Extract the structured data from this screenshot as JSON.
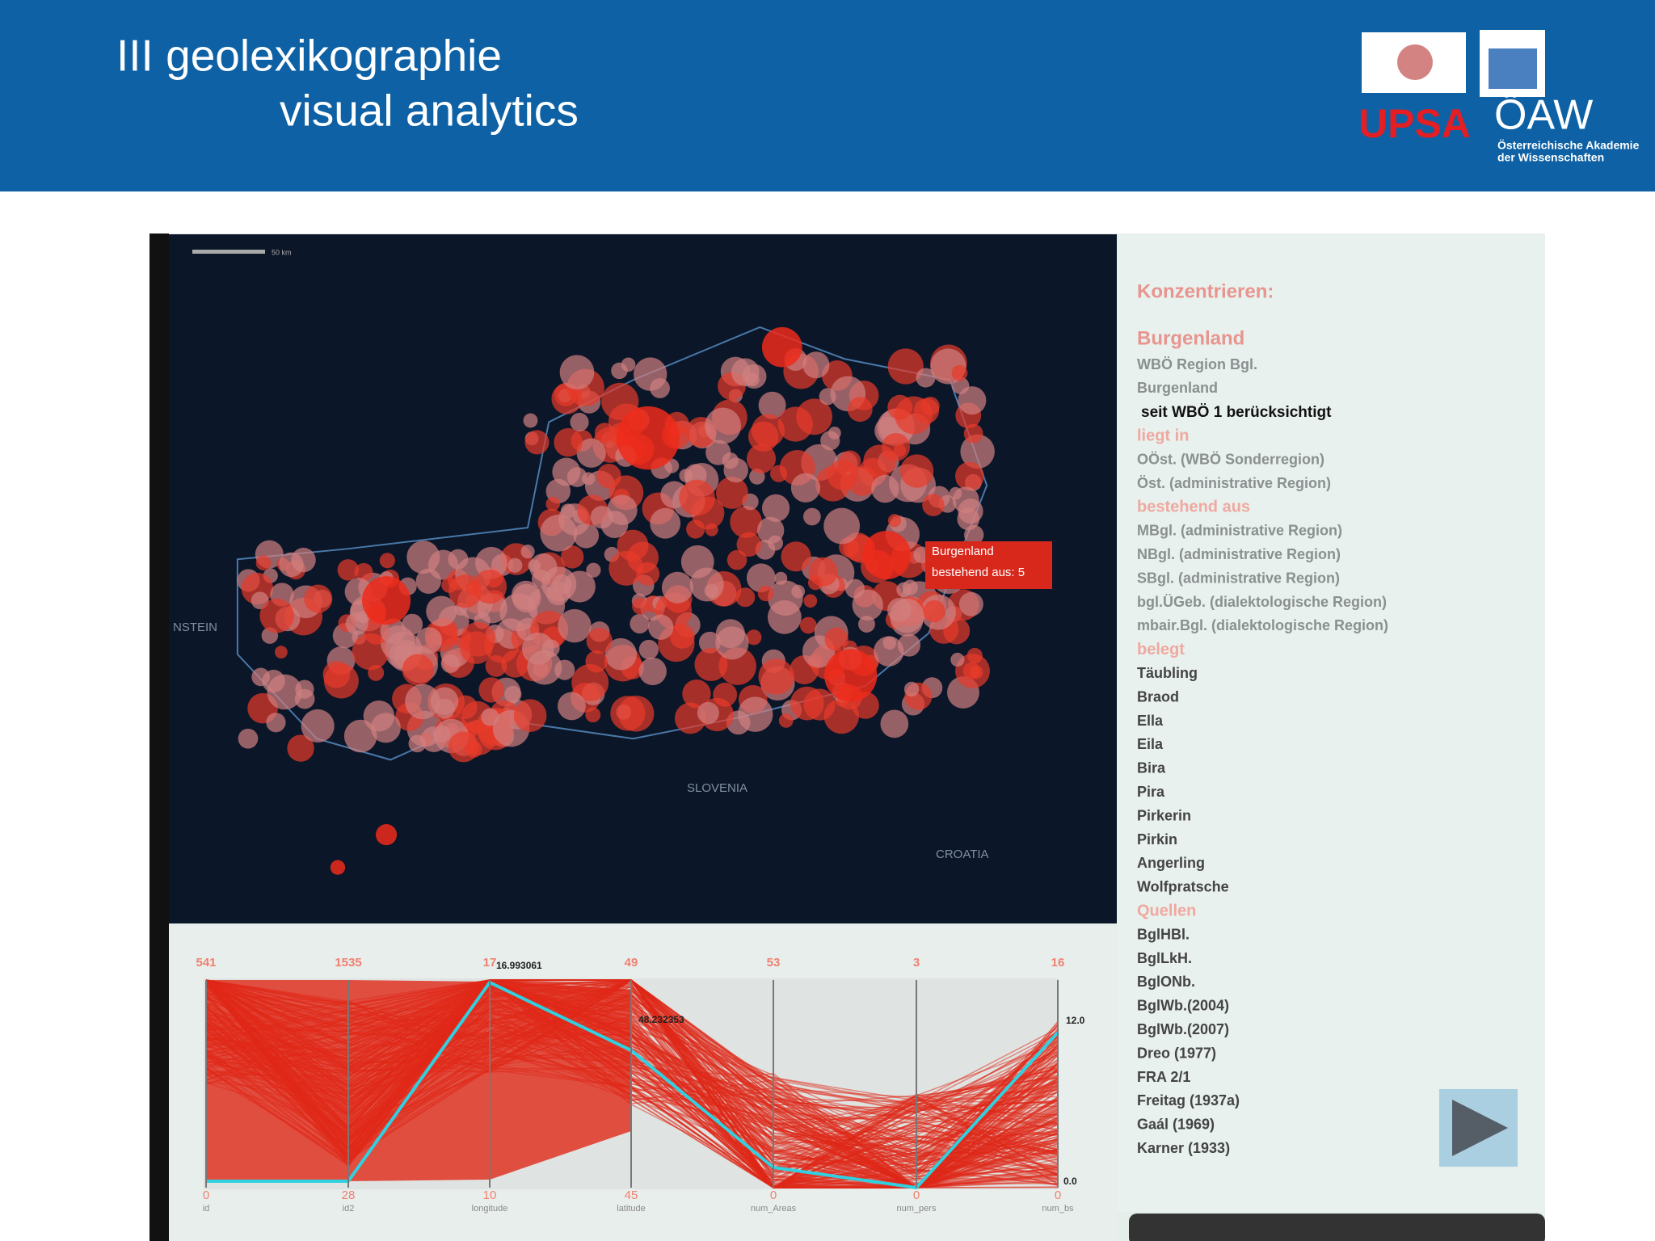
{
  "header": {
    "title_line1": "III geolexikographie",
    "title_line2": "visual analytics",
    "logo_left": "UPSA",
    "logo_right": "ÖAW",
    "logo_right_sub1": "Österreichische Akademie",
    "logo_right_sub2": "der Wissenschaften"
  },
  "map": {
    "scale_label": "50 km",
    "labels": [
      "NSTEIN",
      "SLOVENIA",
      "CROATIA"
    ],
    "tooltip_title": "Burgenland",
    "tooltip_text": "bestehend aus: 5"
  },
  "sidebar": {
    "heading": "Konzentrieren:",
    "items": [
      {
        "text": "Burgenland",
        "style": "title"
      },
      {
        "text": "WBÖ Region Bgl.",
        "style": "gray"
      },
      {
        "text": "Burgenland",
        "style": "gray"
      },
      {
        "text": "seit WBÖ 1 berücksichtigt",
        "style": "bold"
      },
      {
        "text": "liegt in",
        "style": "red"
      },
      {
        "text": "OÖst. (WBÖ Sonderregion)",
        "style": "gray"
      },
      {
        "text": "Öst. (administrative Region)",
        "style": "gray"
      },
      {
        "text": "bestehend aus",
        "style": "red"
      },
      {
        "text": "MBgl. (administrative Region)",
        "style": "gray"
      },
      {
        "text": "NBgl. (administrative Region)",
        "style": "gray"
      },
      {
        "text": "SBgl. (administrative Region)",
        "style": "gray"
      },
      {
        "text": "bgl.ÜGeb. (dialektologische Region)",
        "style": "gray"
      },
      {
        "text": "mbair.Bgl. (dialektologische Region)",
        "style": "gray"
      },
      {
        "text": "belegt",
        "style": "red"
      },
      {
        "text": "Täubling",
        "style": "dark"
      },
      {
        "text": "Braod",
        "style": "dark"
      },
      {
        "text": "Ella",
        "style": "dark"
      },
      {
        "text": "Eila",
        "style": "dark"
      },
      {
        "text": "Bira",
        "style": "dark"
      },
      {
        "text": "Pira",
        "style": "dark"
      },
      {
        "text": "Pirkerin",
        "style": "dark"
      },
      {
        "text": "Pirkin",
        "style": "dark"
      },
      {
        "text": "Angerling",
        "style": "dark"
      },
      {
        "text": "Wolfpratsche",
        "style": "dark"
      },
      {
        "text": "Quellen",
        "style": "red"
      },
      {
        "text": "BglHBl.",
        "style": "dark"
      },
      {
        "text": "BglLkH.",
        "style": "dark"
      },
      {
        "text": "BglONb.",
        "style": "dark"
      },
      {
        "text": "BglWb.(2004)",
        "style": "dark"
      },
      {
        "text": "BglWb.(2007)",
        "style": "dark"
      },
      {
        "text": "Dreo (1977)",
        "style": "dark"
      },
      {
        "text": "FRA 2/1",
        "style": "dark"
      },
      {
        "text": "Freitag (1937a)",
        "style": "dark"
      },
      {
        "text": "Gaál (1969)",
        "style": "dark"
      },
      {
        "text": "Karner (1933)",
        "style": "dark"
      }
    ]
  },
  "parallel_coordinates": {
    "axes": [
      {
        "name": "id",
        "top": "541",
        "bottom": "0"
      },
      {
        "name": "id2",
        "top": "1535",
        "bottom": "28"
      },
      {
        "name": "longitude",
        "top": "17",
        "bottom": "10"
      },
      {
        "name": "latitude",
        "top": "49",
        "bottom": "45"
      },
      {
        "name": "num_Areas",
        "top": "53",
        "bottom": "0"
      },
      {
        "name": "num_pers",
        "top": "3",
        "bottom": "0"
      },
      {
        "name": "num_bs",
        "top": "16",
        "bottom": "0"
      }
    ],
    "annotations": [
      "16.993061",
      "48.232353",
      "12.0",
      "0.0"
    ]
  }
}
